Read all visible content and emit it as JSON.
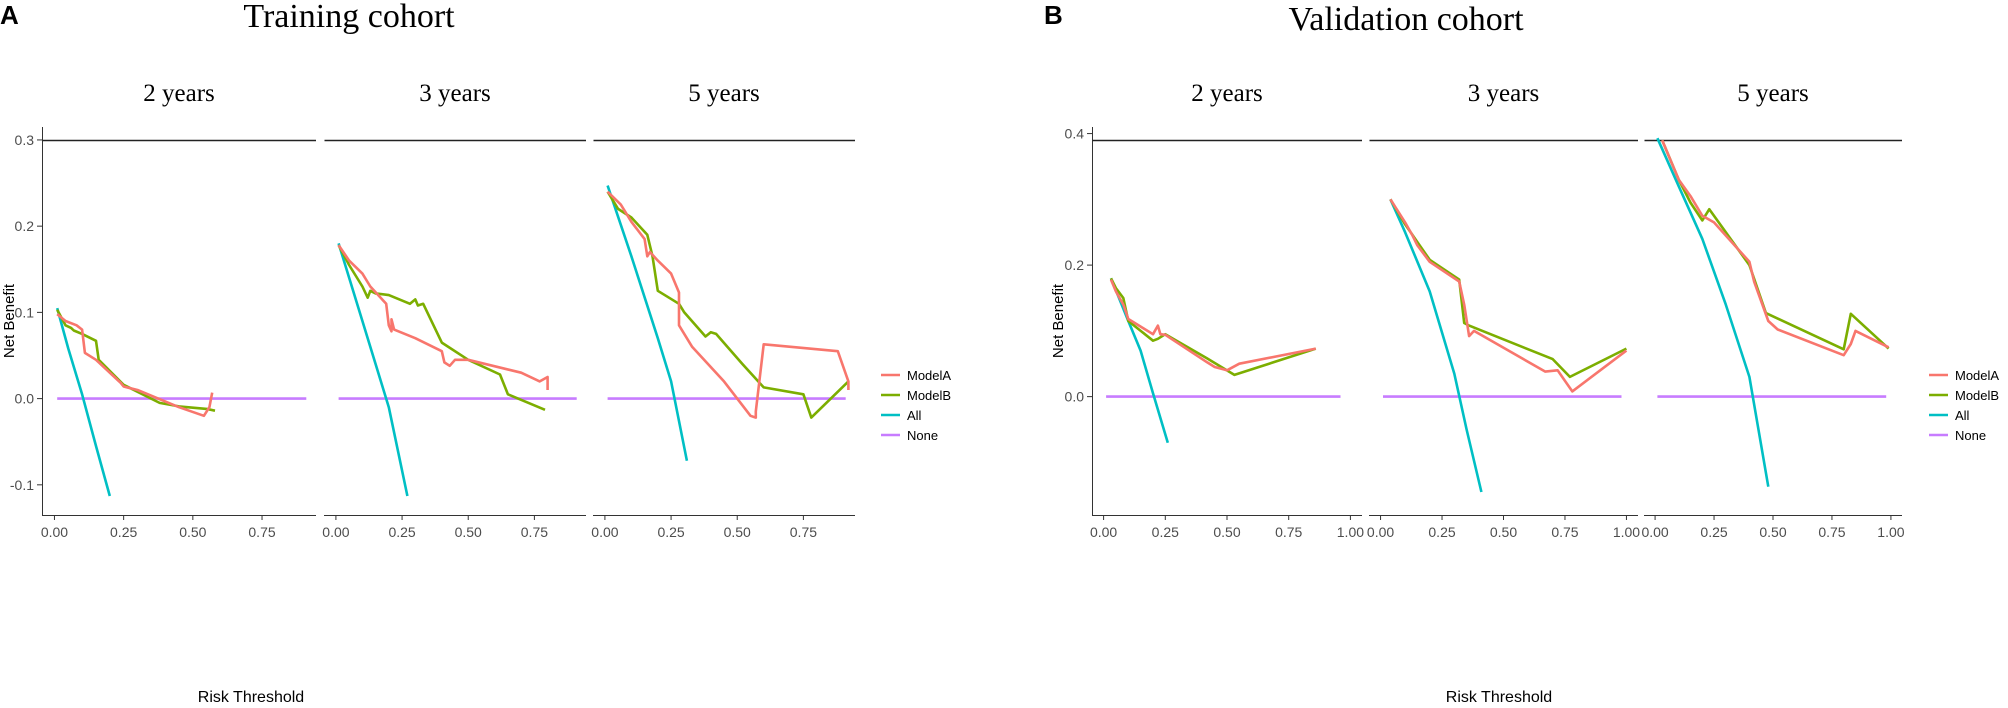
{
  "colors": {
    "ModelA": "#F8766D",
    "ModelB": "#7CAE00",
    "All": "#00BFC4",
    "None": "#C77CFF",
    "axis": "#333333",
    "tick_text": "#4d4d4d"
  },
  "chart_data": [
    {
      "type": "line",
      "panel_label": "A",
      "title": "Training cohort",
      "xlabel": "Risk Threshold",
      "ylabel": "Net Benefit",
      "ylim": [
        -0.135,
        0.315
      ],
      "yticks": [
        -0.1,
        0.0,
        0.1,
        0.2,
        0.3
      ],
      "ytick_labels": [
        "-0.1",
        "0.0",
        "0.1",
        "0.2",
        "0.3"
      ],
      "xlim": [
        -0.045,
        0.945
      ],
      "xticks": [
        0.0,
        0.25,
        0.5,
        0.75
      ],
      "xtick_labels": [
        "0.00",
        "0.25",
        "0.50",
        "0.75"
      ],
      "legend": [
        "ModelA",
        "ModelB",
        "All",
        "None"
      ],
      "legend_position": "right",
      "facets": [
        {
          "label": "2 years",
          "series": [
            {
              "name": "ModelA",
              "x": [
                0.01,
                0.04,
                0.08,
                0.1,
                0.11,
                0.15,
                0.24,
                0.25,
                0.3,
                0.45,
                0.54,
                0.56,
                0.57
              ],
              "y": [
                0.098,
                0.09,
                0.085,
                0.08,
                0.053,
                0.045,
                0.018,
                0.014,
                0.01,
                -0.01,
                -0.02,
                -0.01,
                0.007
              ]
            },
            {
              "name": "ModelB",
              "x": [
                0.01,
                0.04,
                0.06,
                0.07,
                0.1,
                0.15,
                0.16,
                0.25,
                0.38,
                0.45,
                0.55,
                0.58
              ],
              "y": [
                0.103,
                0.085,
                0.082,
                0.079,
                0.075,
                0.067,
                0.045,
                0.016,
                -0.005,
                -0.009,
                -0.012,
                -0.014
              ]
            },
            {
              "name": "All",
              "x": [
                0.01,
                0.05,
                0.1,
                0.15,
                0.2
              ],
              "y": [
                0.105,
                0.058,
                0.005,
                -0.055,
                -0.113
              ]
            },
            {
              "name": "None",
              "x": [
                0.01,
                0.91
              ],
              "y": [
                0.0,
                0.0
              ]
            }
          ]
        },
        {
          "label": "3 years",
          "series": [
            {
              "name": "ModelA",
              "x": [
                0.01,
                0.05,
                0.1,
                0.13,
                0.19,
                0.2,
                0.21,
                0.21,
                0.22,
                0.3,
                0.4,
                0.41,
                0.43,
                0.45,
                0.5,
                0.7,
                0.77,
                0.8,
                0.8
              ],
              "y": [
                0.178,
                0.16,
                0.145,
                0.13,
                0.11,
                0.085,
                0.078,
                0.092,
                0.08,
                0.07,
                0.055,
                0.042,
                0.038,
                0.045,
                0.045,
                0.03,
                0.02,
                0.025,
                0.01
              ]
            },
            {
              "name": "ModelB",
              "x": [
                0.01,
                0.05,
                0.1,
                0.12,
                0.13,
                0.15,
                0.2,
                0.28,
                0.3,
                0.31,
                0.33,
                0.4,
                0.5,
                0.62,
                0.65,
                0.79
              ],
              "y": [
                0.178,
                0.155,
                0.13,
                0.117,
                0.125,
                0.122,
                0.12,
                0.11,
                0.115,
                0.108,
                0.11,
                0.065,
                0.045,
                0.028,
                0.005,
                -0.013
              ]
            },
            {
              "name": "All",
              "x": [
                0.01,
                0.1,
                0.2,
                0.27
              ],
              "y": [
                0.18,
                0.09,
                -0.01,
                -0.113
              ]
            },
            {
              "name": "None",
              "x": [
                0.01,
                0.91
              ],
              "y": [
                0.0,
                0.0
              ]
            }
          ]
        },
        {
          "label": "5 years",
          "series": [
            {
              "name": "ModelA",
              "x": [
                0.01,
                0.06,
                0.1,
                0.15,
                0.16,
                0.17,
                0.2,
                0.25,
                0.28,
                0.28,
                0.33,
                0.45,
                0.55,
                0.57,
                0.57,
                0.6,
                0.88,
                0.92,
                0.92
              ],
              "y": [
                0.24,
                0.225,
                0.205,
                0.185,
                0.165,
                0.17,
                0.16,
                0.145,
                0.123,
                0.085,
                0.06,
                0.02,
                -0.02,
                -0.022,
                -0.015,
                0.063,
                0.055,
                0.02,
                0.01
              ]
            },
            {
              "name": "ModelB",
              "x": [
                0.01,
                0.05,
                0.1,
                0.16,
                0.18,
                0.2,
                0.28,
                0.3,
                0.38,
                0.4,
                0.42,
                0.52,
                0.6,
                0.75,
                0.78,
                0.92
              ],
              "y": [
                0.24,
                0.22,
                0.21,
                0.19,
                0.165,
                0.125,
                0.11,
                0.1,
                0.072,
                0.077,
                0.075,
                0.04,
                0.013,
                0.005,
                -0.022,
                0.02
              ]
            },
            {
              "name": "All",
              "x": [
                0.01,
                0.1,
                0.2,
                0.25,
                0.31
              ],
              "y": [
                0.247,
                0.165,
                0.07,
                0.02,
                -0.072
              ]
            },
            {
              "name": "None",
              "x": [
                0.01,
                0.91
              ],
              "y": [
                0.0,
                0.0
              ]
            }
          ]
        }
      ]
    },
    {
      "type": "line",
      "panel_label": "B",
      "title": "Validation cohort",
      "xlabel": "Risk Threshold",
      "ylabel": "Net Benefit",
      "ylim": [
        -0.18,
        0.41
      ],
      "yticks": [
        0.0,
        0.2,
        0.4
      ],
      "ytick_labels": [
        "0.0",
        "0.2",
        "0.4"
      ],
      "xlim": [
        -0.047,
        1.047
      ],
      "xticks": [
        0.0,
        0.25,
        0.5,
        0.75,
        1.0
      ],
      "xtick_labels": [
        "0.00",
        "0.25",
        "0.50",
        "0.75",
        "1.00"
      ],
      "legend": [
        "ModelA",
        "ModelB",
        "All",
        "None"
      ],
      "legend_position": "right",
      "facets": [
        {
          "label": "2 years",
          "series": [
            {
              "name": "ModelA",
              "x": [
                0.03,
                0.05,
                0.08,
                0.1,
                0.2,
                0.22,
                0.23,
                0.25,
                0.42,
                0.45,
                0.5,
                0.55,
                0.86
              ],
              "y": [
                0.178,
                0.16,
                0.14,
                0.118,
                0.095,
                0.108,
                0.095,
                0.094,
                0.052,
                0.045,
                0.04,
                0.05,
                0.073
              ]
            },
            {
              "name": "ModelB",
              "x": [
                0.03,
                0.05,
                0.08,
                0.1,
                0.2,
                0.22,
                0.25,
                0.42,
                0.53,
                0.86
              ],
              "y": [
                0.18,
                0.165,
                0.15,
                0.115,
                0.085,
                0.088,
                0.095,
                0.058,
                0.033,
                0.073
              ]
            },
            {
              "name": "All",
              "x": [
                0.03,
                0.1,
                0.15,
                0.2,
                0.26
              ],
              "y": [
                0.18,
                0.115,
                0.07,
                0.005,
                -0.07
              ]
            },
            {
              "name": "None",
              "x": [
                0.01,
                0.96
              ],
              "y": [
                0.0,
                0.0
              ]
            }
          ]
        },
        {
          "label": "3 years",
          "series": [
            {
              "name": "ModelA",
              "x": [
                0.04,
                0.1,
                0.13,
                0.15,
                0.2,
                0.32,
                0.34,
                0.36,
                0.38,
                0.67,
                0.72,
                0.78,
                1.0
              ],
              "y": [
                0.3,
                0.265,
                0.245,
                0.23,
                0.205,
                0.175,
                0.14,
                0.092,
                0.1,
                0.038,
                0.04,
                0.008,
                0.07
              ]
            },
            {
              "name": "ModelB",
              "x": [
                0.04,
                0.1,
                0.15,
                0.2,
                0.32,
                0.34,
                0.36,
                0.7,
                0.77,
                1.0
              ],
              "y": [
                0.3,
                0.262,
                0.235,
                0.208,
                0.178,
                0.112,
                0.108,
                0.057,
                0.03,
                0.073
              ]
            },
            {
              "name": "All",
              "x": [
                0.04,
                0.1,
                0.2,
                0.3,
                0.35,
                0.41
              ],
              "y": [
                0.3,
                0.25,
                0.16,
                0.035,
                -0.05,
                -0.145
              ]
            },
            {
              "name": "None",
              "x": [
                0.01,
                0.98
              ],
              "y": [
                0.0,
                0.0
              ]
            }
          ]
        },
        {
          "label": "5 years",
          "series": [
            {
              "name": "ModelA",
              "x": [
                0.03,
                0.1,
                0.15,
                0.2,
                0.25,
                0.4,
                0.42,
                0.48,
                0.52,
                0.8,
                0.83,
                0.85,
                0.99
              ],
              "y": [
                0.39,
                0.33,
                0.305,
                0.275,
                0.265,
                0.205,
                0.175,
                0.115,
                0.102,
                0.063,
                0.08,
                0.1,
                0.075
              ]
            },
            {
              "name": "ModelB",
              "x": [
                0.03,
                0.1,
                0.15,
                0.2,
                0.23,
                0.4,
                0.47,
                0.8,
                0.83,
                0.99
              ],
              "y": [
                0.39,
                0.33,
                0.295,
                0.268,
                0.285,
                0.2,
                0.127,
                0.072,
                0.126,
                0.073
              ]
            },
            {
              "name": "All",
              "x": [
                0.01,
                0.1,
                0.2,
                0.3,
                0.4,
                0.48
              ],
              "y": [
                0.393,
                0.32,
                0.24,
                0.14,
                0.03,
                -0.137
              ]
            },
            {
              "name": "None",
              "x": [
                0.01,
                0.98
              ],
              "y": [
                0.0,
                0.0
              ]
            }
          ]
        }
      ]
    }
  ]
}
